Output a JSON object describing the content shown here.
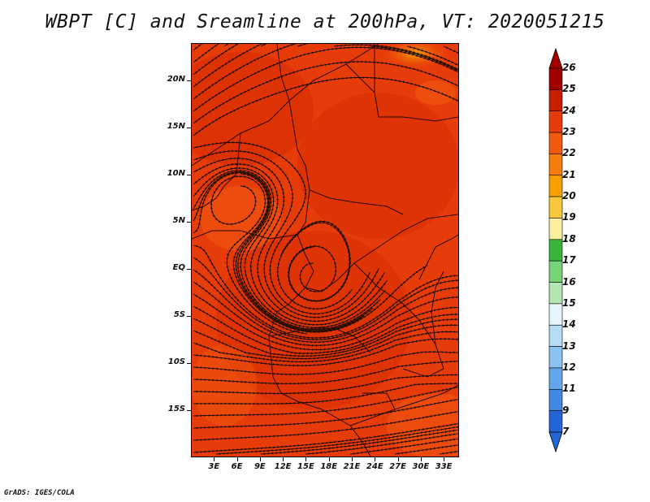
{
  "title": "WBPT [C] and Sreamline at 200hPa, VT: 2020051215",
  "credit": "GrADS: IGES/COLA",
  "map": {
    "lon_range": [
      0,
      35
    ],
    "lat_range": [
      -20,
      24
    ],
    "y_axis": {
      "ticks": [
        {
          "lat": 20,
          "label": "20N"
        },
        {
          "lat": 15,
          "label": "15N"
        },
        {
          "lat": 10,
          "label": "10N"
        },
        {
          "lat": 5,
          "label": "5N"
        },
        {
          "lat": 0,
          "label": "EQ"
        },
        {
          "lat": -5,
          "label": "5S"
        },
        {
          "lat": -10,
          "label": "10S"
        },
        {
          "lat": -15,
          "label": "15S"
        }
      ]
    },
    "x_axis": {
      "ticks": [
        {
          "lon": 3,
          "label": "3E"
        },
        {
          "lon": 6,
          "label": "6E"
        },
        {
          "lon": 9,
          "label": "9E"
        },
        {
          "lon": 12,
          "label": "12E"
        },
        {
          "lon": 15,
          "label": "15E"
        },
        {
          "lon": 18,
          "label": "18E"
        },
        {
          "lon": 21,
          "label": "21E"
        },
        {
          "lon": 24,
          "label": "24E"
        },
        {
          "lon": 27,
          "label": "27E"
        },
        {
          "lon": 30,
          "label": "30E"
        },
        {
          "lon": 33,
          "label": "33E"
        }
      ]
    },
    "field_colors": {
      "base": "#e63c0a",
      "warm": "#d42a00",
      "cool": "#f05a10",
      "hot_spot": "#f5a000"
    },
    "streamline_color": "#1a0a00",
    "border_color": "#2a0800"
  },
  "colorbar": {
    "labels": [
      "26",
      "25",
      "24",
      "23",
      "22",
      "21",
      "20",
      "19",
      "18",
      "17",
      "16",
      "15",
      "14",
      "13",
      "12",
      "11",
      "9",
      "7"
    ],
    "colors": [
      "#a00000",
      "#c81e00",
      "#e63c0a",
      "#f05a10",
      "#f57d0a",
      "#f5a000",
      "#f7c83c",
      "#faf0a0",
      "#3cb43c",
      "#78d278",
      "#b4e6b4",
      "#e6f5fa",
      "#b4dcf5",
      "#8cc3f0",
      "#64a5eb",
      "#4187e1",
      "#2364d7"
    ],
    "top_arrow_color": "#a00000",
    "bottom_arrow_color": "#2364d7"
  }
}
